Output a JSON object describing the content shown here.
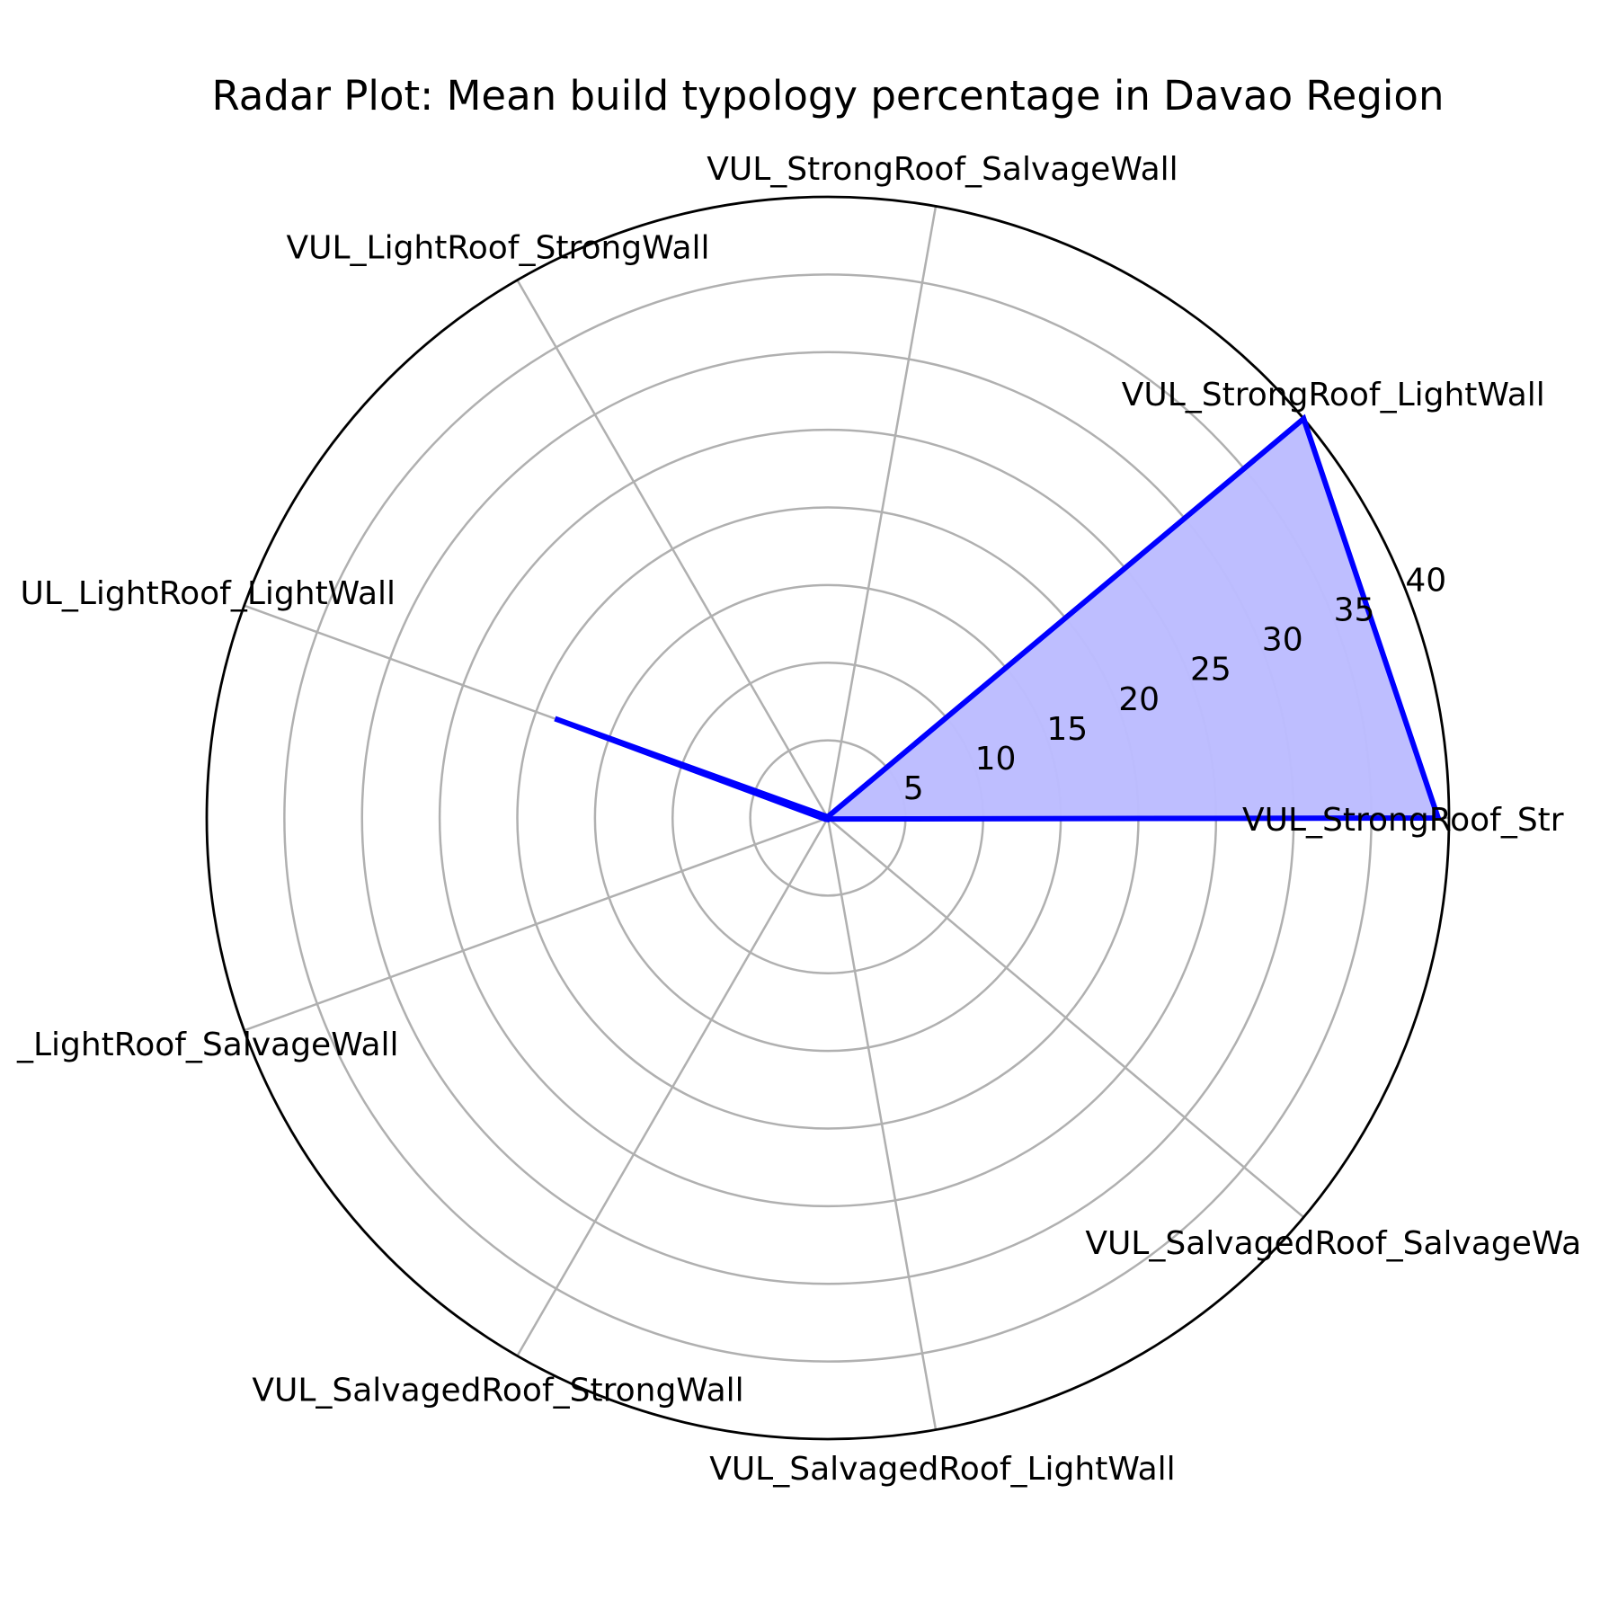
{
  "chart_data": {
    "type": "radar",
    "title": "Radar Plot: Mean build typology percentage in Davao Region",
    "categories": [
      "VUL_StrongRoof_StrongWall",
      "VUL_StrongRoof_LightWall",
      "VUL_StrongRoof_SalvageWall",
      "VUL_LightRoof_StrongWall",
      "VUL_LightRoof_LightWall",
      "VUL_LightRoof_SalvageWall",
      "VUL_SalvagedRoof_StrongWall",
      "VUL_SalvagedRoof_LightWall",
      "VUL_SalvagedRoof_SalvageWall"
    ],
    "category_labels_shown": [
      "VUL_StrongRoof_Str",
      "VUL_StrongRoof_LightWall",
      "VUL_StrongRoof_SalvageWall",
      "VUL_LightRoof_StrongWall",
      "UL_LightRoof_LightWall",
      "_LightRoof_SalvageWall",
      "VUL_SalvagedRoof_StrongWall",
      "VUL_SalvagedRoof_LightWall",
      "VUL_SalvagedRoof_SalvageWa"
    ],
    "series": [
      {
        "values": [
          39.3,
          40.0,
          0.1,
          0.1,
          18.7,
          0.2,
          0.1,
          0.1,
          0.1
        ]
      }
    ],
    "r_ticks": [
      "5",
      "10",
      "15",
      "20",
      "25",
      "30",
      "35",
      "40"
    ],
    "r_tick_values": [
      5,
      10,
      15,
      20,
      25,
      30,
      35,
      40
    ],
    "rlim": [
      0,
      40
    ],
    "grid": true,
    "colors": {
      "line": "#0000ff",
      "fill": "#bcbcff",
      "grid": "#b0b0b0",
      "frame": "#000000"
    }
  }
}
